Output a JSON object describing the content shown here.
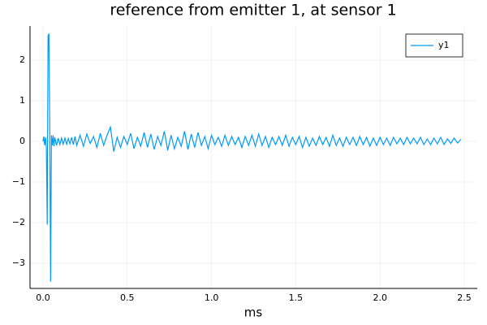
{
  "chart_data": {
    "type": "line",
    "title": "reference from emitter 1, at sensor 1",
    "x_label": "ms",
    "series": [
      {
        "name": "y1",
        "color": "#009af9",
        "x": [
          0,
          0.005,
          0.01,
          0.015,
          0.02,
          0.025,
          0.03,
          0.035,
          0.04,
          0.045,
          0.05,
          0.055,
          0.06,
          0.065,
          0.07,
          0.08,
          0.09,
          0.1,
          0.11,
          0.12,
          0.13,
          0.14,
          0.15,
          0.16,
          0.17,
          0.18,
          0.19,
          0.2,
          0.22,
          0.24,
          0.26,
          0.28,
          0.3,
          0.32,
          0.34,
          0.36,
          0.38,
          0.4,
          0.42,
          0.44,
          0.46,
          0.48,
          0.5,
          0.52,
          0.54,
          0.56,
          0.58,
          0.6,
          0.62,
          0.64,
          0.66,
          0.68,
          0.7,
          0.72,
          0.74,
          0.76,
          0.78,
          0.8,
          0.82,
          0.84,
          0.86,
          0.88,
          0.9,
          0.92,
          0.94,
          0.96,
          0.98,
          1.0,
          1.02,
          1.04,
          1.06,
          1.08,
          1.1,
          1.12,
          1.14,
          1.16,
          1.18,
          1.2,
          1.22,
          1.24,
          1.26,
          1.28,
          1.3,
          1.32,
          1.34,
          1.36,
          1.38,
          1.4,
          1.42,
          1.44,
          1.46,
          1.48,
          1.5,
          1.52,
          1.54,
          1.56,
          1.58,
          1.6,
          1.62,
          1.64,
          1.66,
          1.68,
          1.7,
          1.72,
          1.74,
          1.76,
          1.78,
          1.8,
          1.82,
          1.84,
          1.86,
          1.88,
          1.9,
          1.92,
          1.94,
          1.96,
          1.98,
          2.0,
          2.02,
          2.04,
          2.06,
          2.08,
          2.1,
          2.12,
          2.14,
          2.16,
          2.18,
          2.2,
          2.22,
          2.24,
          2.26,
          2.28,
          2.3,
          2.32,
          2.34,
          2.36,
          2.38,
          2.4,
          2.42,
          2.44,
          2.46,
          2.48
        ],
        "values": [
          0,
          0.12,
          -0.1,
          0.1,
          -0.15,
          -2.05,
          2.6,
          2.65,
          0.3,
          -3.45,
          0.15,
          -0.1,
          0.15,
          -0.12,
          0.1,
          -0.1,
          0.08,
          -0.08,
          0.08,
          -0.07,
          0.08,
          -0.07,
          0.07,
          -0.06,
          0.1,
          -0.08,
          0.12,
          -0.1,
          0.15,
          -0.12,
          0.18,
          -0.05,
          0.12,
          -0.15,
          0.2,
          -0.1,
          0.15,
          0.35,
          -0.25,
          0.1,
          -0.15,
          0.12,
          -0.08,
          0.2,
          -0.18,
          0.1,
          -0.12,
          0.22,
          -0.15,
          0.18,
          -0.2,
          0.12,
          -0.1,
          0.25,
          -0.22,
          0.15,
          -0.18,
          0.1,
          -0.12,
          0.25,
          -0.2,
          0.18,
          -0.15,
          0.22,
          -0.1,
          0.12,
          -0.18,
          0.15,
          -0.08,
          0.1,
          -0.12,
          0.15,
          -0.1,
          0.12,
          -0.08,
          0.1,
          -0.15,
          0.12,
          -0.1,
          0.15,
          -0.12,
          0.18,
          -0.1,
          0.12,
          -0.15,
          0.1,
          -0.08,
          0.12,
          -0.1,
          0.15,
          -0.12,
          0.1,
          -0.08,
          0.12,
          -0.15,
          0.1,
          -0.12,
          0.08,
          -0.1,
          0.12,
          -0.08,
          0.1,
          -0.12,
          0.15,
          -0.1,
          0.08,
          -0.12,
          0.1,
          -0.08,
          0.1,
          -0.1,
          0.12,
          -0.08,
          0.1,
          -0.12,
          0.08,
          -0.1,
          0.1,
          -0.08,
          0.08,
          -0.1,
          0.1,
          -0.06,
          0.08,
          -0.08,
          0.1,
          -0.06,
          0.08,
          -0.06,
          0.1,
          -0.08,
          0.06,
          -0.08,
          0.08,
          -0.06,
          0.1,
          -0.08,
          0.06,
          -0.05,
          0.08,
          -0.04,
          0.05
        ]
      }
    ],
    "xlim": [
      -0.077,
      2.577
    ],
    "ylim": [
      -3.62,
      2.84
    ],
    "xticks": [
      {
        "value": 0,
        "label": "0.0"
      },
      {
        "value": 0.5,
        "label": "0.5"
      },
      {
        "value": 1,
        "label": "1.0"
      },
      {
        "value": 1.5,
        "label": "1.5"
      },
      {
        "value": 2,
        "label": "2.0"
      },
      {
        "value": 2.5,
        "label": "2.5"
      }
    ],
    "yticks": [
      {
        "value": -3,
        "label": "−3"
      },
      {
        "value": -2,
        "label": "−2"
      },
      {
        "value": -1,
        "label": "−1"
      },
      0,
      1,
      2
    ],
    "grid": true,
    "legend": "top-right"
  }
}
